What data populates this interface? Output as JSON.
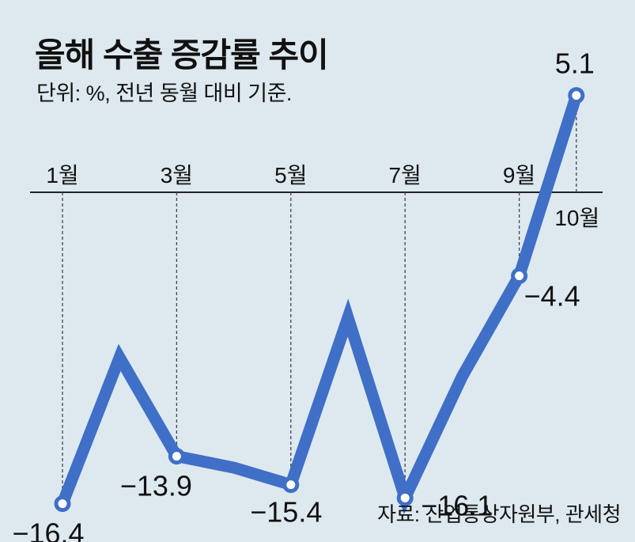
{
  "title": "올해 수출 증감률 추이",
  "subtitle": "단위: %, 전년 동월 대비 기준.",
  "source": "자료: 산업통상자원부, 관세청",
  "colors": {
    "line": "#3f6fc6",
    "background": "#dde9ef",
    "marker_fill": "#ffffff",
    "text": "#111111"
  },
  "chart_data": {
    "type": "line",
    "title": "올해 수출 증감률 추이",
    "ylabel": "",
    "xlabel": "",
    "ylim": [
      -17.5,
      6.5
    ],
    "grid": false,
    "months": [
      1,
      2,
      3,
      4,
      5,
      6,
      7,
      8,
      9,
      10
    ],
    "tick_labels": [
      {
        "month": 1,
        "label": "1월"
      },
      {
        "month": 3,
        "label": "3월"
      },
      {
        "month": 5,
        "label": "5월"
      },
      {
        "month": 7,
        "label": "7월"
      },
      {
        "month": 9,
        "label": "9월"
      },
      {
        "month": 10,
        "label": "10월"
      }
    ],
    "series": [
      {
        "values": [
          -16.4,
          -8.7,
          -13.9,
          -14.5,
          -15.4,
          -6.6,
          -16.1,
          -9.7,
          -4.4,
          5.1
        ]
      }
    ],
    "data_labels": [
      {
        "month": 1,
        "label": "−16.4"
      },
      {
        "month": 3,
        "label": "−13.9"
      },
      {
        "month": 5,
        "label": "−15.4"
      },
      {
        "month": 7,
        "label": "−16.1"
      },
      {
        "month": 9,
        "label": "−4.4"
      },
      {
        "month": 10,
        "label": "5.1"
      }
    ]
  }
}
